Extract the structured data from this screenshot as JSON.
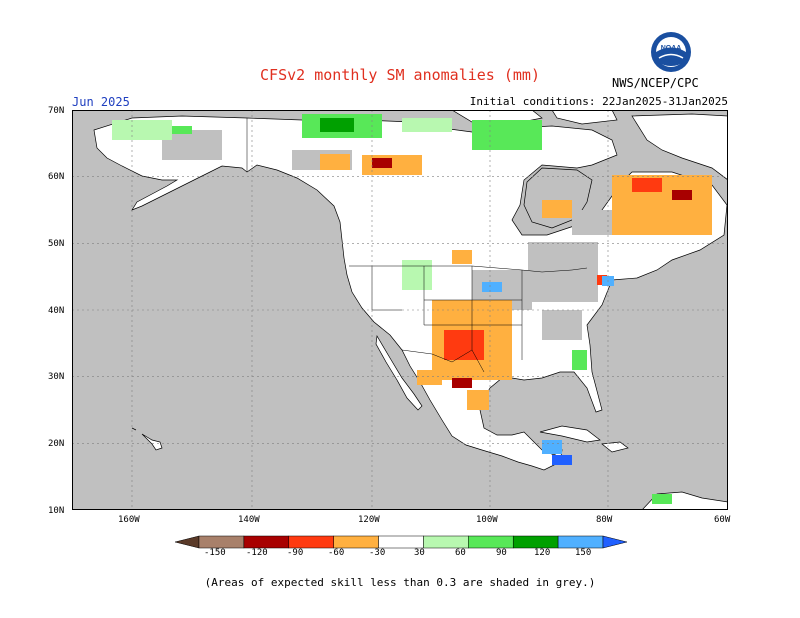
{
  "header": {
    "title": "CFSv2 monthly SM anomalies (mm)",
    "month": "Jun 2025",
    "initial_conditions": "Initial conditions: 22Jan2025-31Jan2025",
    "agency": "NWS/NCEP/CPC",
    "logo_text": "NOAA"
  },
  "map": {
    "lat_labels": [
      "70N",
      "60N",
      "50N",
      "40N",
      "30N",
      "20N",
      "10N"
    ],
    "lon_labels": [
      "160W",
      "140W",
      "120W",
      "100W",
      "80W",
      "60W"
    ],
    "colors": {
      "ocean": "#c0c0c0",
      "land": "#ffffff",
      "skill_grey": "#c0c0c0",
      "grid": "#808080"
    }
  },
  "colorbar": {
    "labels": [
      "-150",
      "-120",
      "-90",
      "-60",
      "-30",
      "30",
      "60",
      "90",
      "120",
      "150"
    ],
    "colors": [
      "#5a3a28",
      "#a8806a",
      "#a80000",
      "#ff3a10",
      "#ffb040",
      "#ffffff",
      "#b8f8b0",
      "#58e858",
      "#00a000",
      "#50b0ff",
      "#2060ff"
    ]
  },
  "footnote": "(Areas of expected skill less than 0.3 are shaded in grey.)"
}
